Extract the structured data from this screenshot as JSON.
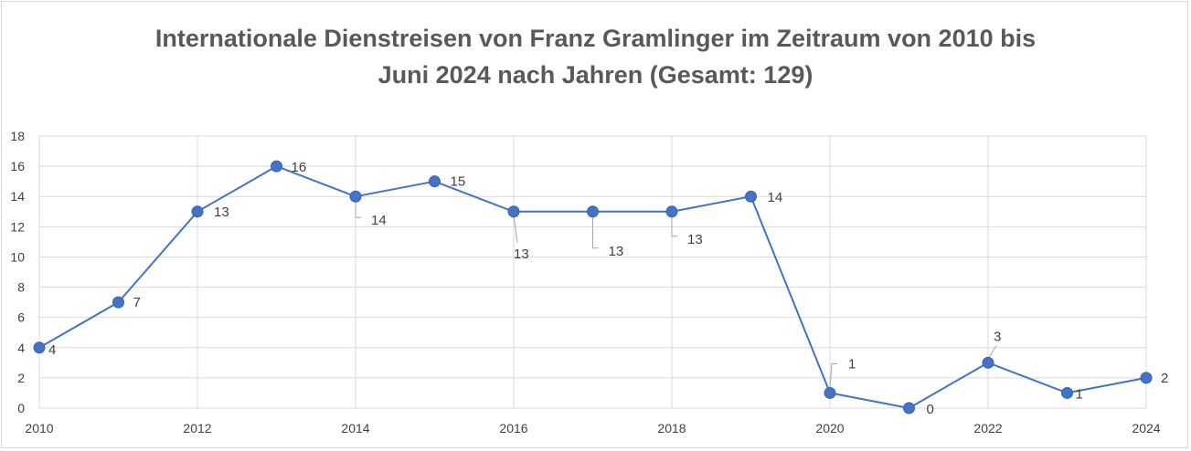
{
  "chart_data": {
    "type": "line",
    "title_lines": [
      "Internationale Dienstreisen von Franz Gramlinger im Zeitraum von 2010 bis",
      "Juni 2024 nach Jahren (Gesamt: 129)"
    ],
    "xlabel": "",
    "ylabel": "",
    "x": [
      2010,
      2011,
      2012,
      2013,
      2014,
      2015,
      2016,
      2017,
      2018,
      2019,
      2020,
      2021,
      2022,
      2023,
      2024
    ],
    "series": [
      {
        "values": [
          4,
          7,
          13,
          16,
          14,
          15,
          13,
          13,
          13,
          14,
          1,
          0,
          3,
          1,
          2
        ]
      }
    ],
    "x_tick_labels": [
      "2010",
      "2012",
      "2014",
      "2016",
      "2018",
      "2020",
      "2022",
      "2024"
    ],
    "y_tick_labels": [
      "0",
      "2",
      "4",
      "6",
      "8",
      "10",
      "12",
      "14",
      "16",
      "18"
    ],
    "ylim": [
      0,
      18
    ],
    "grid": true,
    "legend": "none",
    "colors": {
      "line": "#4472c4",
      "marker": "#4472c4",
      "grid": "#d9d9d9",
      "text": "#595959"
    }
  }
}
